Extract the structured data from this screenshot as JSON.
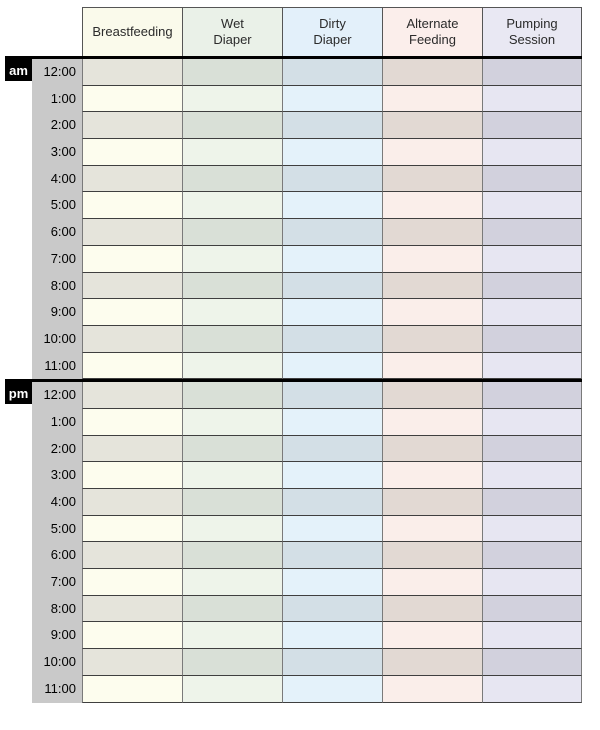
{
  "schedule": {
    "columns": [
      {
        "id": "breastfeeding",
        "label": "Breastfeeding",
        "header_bg": "#fafaeb",
        "shaded_bg": "#e5e4db",
        "light_bg": "#fdfdee"
      },
      {
        "id": "wet-diaper",
        "label": "Wet\nDiaper",
        "header_bg": "#eaf1e8",
        "shaded_bg": "#d9e0d7",
        "light_bg": "#eef4ea"
      },
      {
        "id": "dirty-diaper",
        "label": "Dirty\nDiaper",
        "header_bg": "#e3f0fa",
        "shaded_bg": "#d3dfe6",
        "light_bg": "#e4f2fa"
      },
      {
        "id": "alternate-feeding",
        "label": "Alternate\nFeeding",
        "header_bg": "#fbeeeb",
        "shaded_bg": "#e2d9d3",
        "light_bg": "#faeeea"
      },
      {
        "id": "pumping-session",
        "label": "Pumping\nSession",
        "header_bg": "#e9e8f3",
        "shaded_bg": "#d2d1dd",
        "light_bg": "#e7e6f2"
      }
    ],
    "sections": [
      {
        "id": "am",
        "label": "am"
      },
      {
        "id": "pm",
        "label": "pm"
      }
    ],
    "hours": [
      "12:00",
      "1:00",
      "2:00",
      "3:00",
      "4:00",
      "5:00",
      "6:00",
      "7:00",
      "8:00",
      "9:00",
      "10:00",
      "11:00"
    ],
    "colors": {
      "time_column_bg": "#c9c9c9",
      "section_label_bg": "#000000",
      "section_label_text": "#ffffff",
      "divider": "#000000",
      "row_line": "#3f3f3f",
      "column_line": "#7a7a7a"
    }
  }
}
